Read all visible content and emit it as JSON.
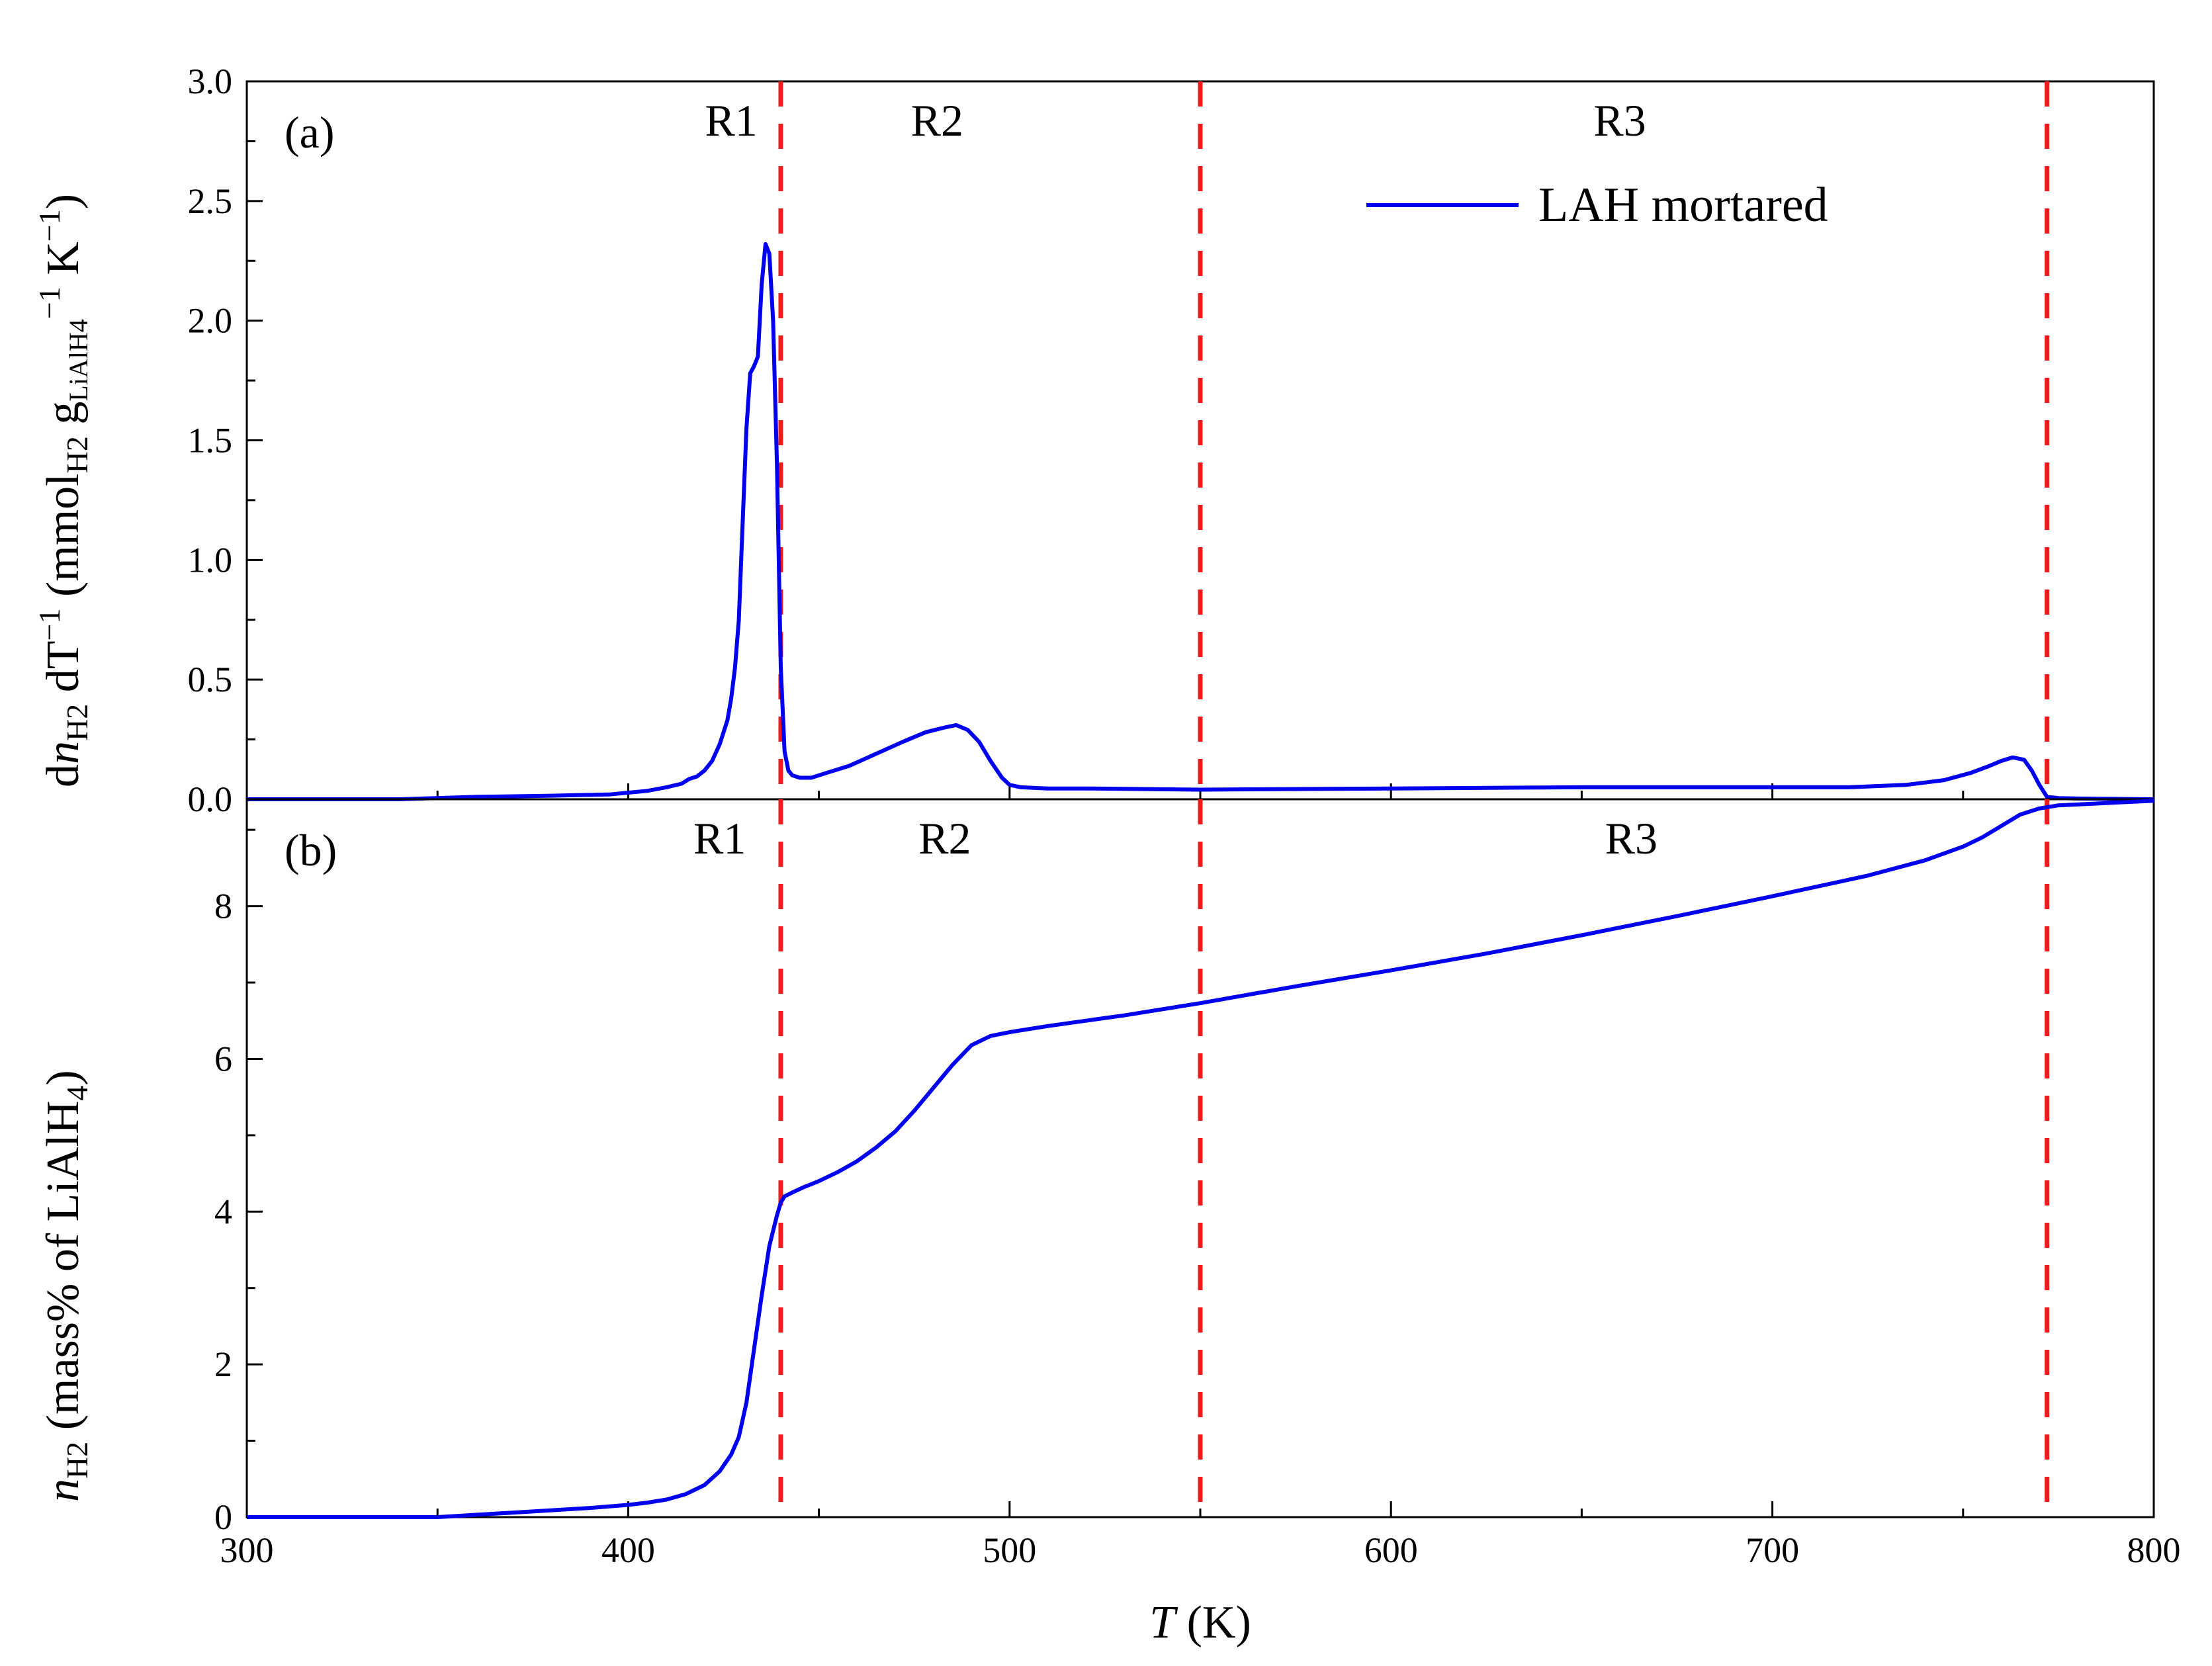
{
  "chart_data": [
    {
      "panel": "(a)",
      "type": "line",
      "xlabel": "",
      "ylabel_parts": {
        "main": "d",
        "n": "n",
        "sub_h2": "H2",
        "dT": " dT",
        "minus1": "−1",
        "unit_open": " (mmol",
        "unit_sub": "H2",
        "g": " g",
        "g_sub": "LiAlH4",
        "unit_close": " K",
        "unit_close2": ")"
      },
      "xlim": [
        300,
        800
      ],
      "ylim": [
        0.0,
        3.0
      ],
      "yticks": [
        "0.0",
        "0.5",
        "1.0",
        "1.5",
        "2.0",
        "2.5",
        "3.0"
      ],
      "ytick_values": [
        0.0,
        0.5,
        1.0,
        1.5,
        2.0,
        2.5,
        3.0
      ],
      "legend": {
        "label": "LAH mortared",
        "placement": "top-right"
      },
      "region_labels": [
        {
          "text": "R1",
          "x": 427
        },
        {
          "text": "R2",
          "x": 481
        },
        {
          "text": "R3",
          "x": 660
        }
      ],
      "boundaries": [
        440,
        550,
        772
      ],
      "series": [
        {
          "name": "LAH mortared",
          "color": "#0000ee",
          "x": [
            300,
            340,
            360,
            380,
            395,
            405,
            410,
            414,
            416,
            418,
            420,
            422,
            424,
            426,
            427,
            428,
            429,
            430,
            431,
            432,
            433,
            434,
            435,
            436,
            437,
            438,
            439,
            440,
            441,
            442,
            443,
            445,
            448,
            452,
            458,
            465,
            472,
            478,
            483,
            486,
            489,
            492,
            495,
            498,
            500,
            503,
            510,
            520,
            550,
            600,
            650,
            700,
            720,
            735,
            745,
            752,
            757,
            760,
            763,
            766,
            768,
            770,
            772,
            775,
            780,
            800
          ],
          "y": [
            0.0,
            0.0,
            0.01,
            0.015,
            0.02,
            0.035,
            0.05,
            0.065,
            0.085,
            0.095,
            0.12,
            0.16,
            0.23,
            0.33,
            0.42,
            0.55,
            0.75,
            1.15,
            1.55,
            1.78,
            1.81,
            1.85,
            2.15,
            2.32,
            2.28,
            2.0,
            1.4,
            0.55,
            0.2,
            0.12,
            0.1,
            0.09,
            0.09,
            0.11,
            0.14,
            0.19,
            0.24,
            0.28,
            0.3,
            0.31,
            0.29,
            0.24,
            0.16,
            0.09,
            0.06,
            0.05,
            0.045,
            0.045,
            0.04,
            0.045,
            0.05,
            0.05,
            0.05,
            0.06,
            0.08,
            0.11,
            0.14,
            0.16,
            0.175,
            0.165,
            0.12,
            0.06,
            0.01,
            0.005,
            0.003,
            0.0
          ]
        }
      ]
    },
    {
      "panel": "(b)",
      "type": "line",
      "xlabel_parts": {
        "t": "T",
        "unit": " (K)"
      },
      "ylabel_parts": {
        "n": "n",
        "sub_h2": "H2",
        "unit_open": " (mass% of LiAlH",
        "unit_sub": "4",
        "unit_close": ")"
      },
      "xlim": [
        300,
        800
      ],
      "ylim": [
        0,
        9.4
      ],
      "xticks": [
        "300",
        "400",
        "500",
        "600",
        "700",
        "800"
      ],
      "xtick_values": [
        300,
        400,
        500,
        600,
        700,
        800
      ],
      "yticks": [
        "0",
        "2",
        "4",
        "6",
        "8"
      ],
      "ytick_values": [
        0,
        2,
        4,
        6,
        8
      ],
      "region_labels": [
        {
          "text": "R1",
          "x": 424
        },
        {
          "text": "R2",
          "x": 483
        },
        {
          "text": "R3",
          "x": 663
        }
      ],
      "boundaries": [
        440,
        550,
        772
      ],
      "series": [
        {
          "name": "LAH mortared",
          "color": "#0000ee",
          "x": [
            300,
            350,
            360,
            370,
            380,
            390,
            400,
            405,
            410,
            415,
            420,
            424,
            427,
            429,
            431,
            433,
            435,
            437,
            439,
            440,
            441,
            443,
            446,
            450,
            455,
            460,
            465,
            470,
            475,
            480,
            485,
            490,
            495,
            500,
            510,
            520,
            530,
            540,
            550,
            575,
            600,
            625,
            650,
            675,
            700,
            725,
            740,
            750,
            755,
            760,
            765,
            770,
            775,
            800
          ],
          "y": [
            0.0,
            0.0,
            0.03,
            0.06,
            0.09,
            0.12,
            0.16,
            0.19,
            0.23,
            0.3,
            0.42,
            0.6,
            0.82,
            1.05,
            1.5,
            2.2,
            2.9,
            3.55,
            3.95,
            4.12,
            4.2,
            4.25,
            4.32,
            4.4,
            4.52,
            4.66,
            4.84,
            5.05,
            5.32,
            5.62,
            5.92,
            6.18,
            6.3,
            6.35,
            6.43,
            6.5,
            6.57,
            6.65,
            6.73,
            6.95,
            7.16,
            7.38,
            7.62,
            7.87,
            8.13,
            8.4,
            8.6,
            8.78,
            8.9,
            9.05,
            9.2,
            9.28,
            9.32,
            9.38
          ]
        }
      ]
    }
  ]
}
